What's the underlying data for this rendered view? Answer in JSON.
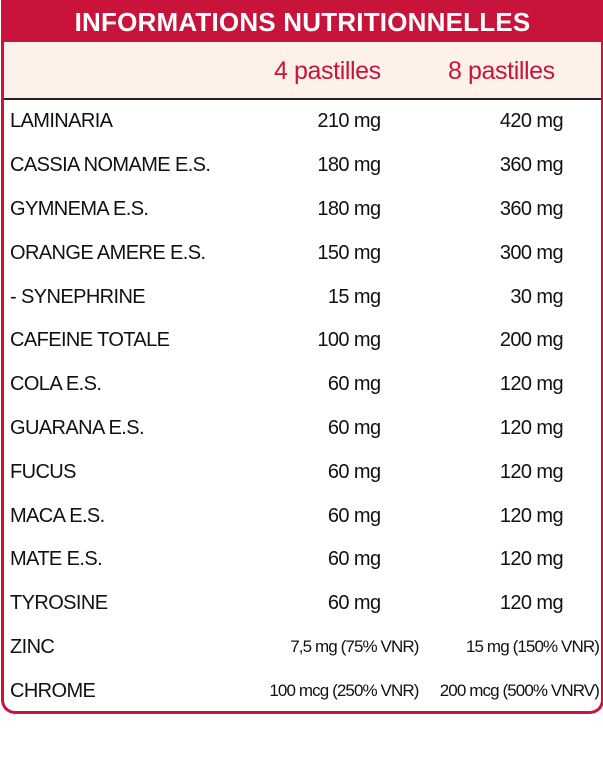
{
  "header": {
    "title": "INFORMATIONS NUTRITIONNELLES"
  },
  "table": {
    "columns": [
      "4 pastilles",
      "8 pastilles"
    ],
    "rows": [
      [
        "LAMINARIA",
        "210 mg",
        "420 mg"
      ],
      [
        "CASSIA NOMAME E.S.",
        "180 mg",
        "360 mg"
      ],
      [
        "GYMNEMA E.S.",
        "180 mg",
        "360 mg"
      ],
      [
        "ORANGE AMERE E.S.",
        "150 mg",
        "300 mg"
      ],
      [
        " - SYNEPHRINE",
        "15 mg",
        "30 mg"
      ],
      [
        "CAFEINE TOTALE",
        "100 mg",
        "200 mg"
      ],
      [
        "COLA E.S.",
        "60 mg",
        "120 mg"
      ],
      [
        "GUARANA E.S.",
        "60 mg",
        "120 mg"
      ],
      [
        "FUCUS",
        "60 mg",
        "120 mg"
      ],
      [
        "MACA E.S.",
        "60 mg",
        "120 mg"
      ],
      [
        "MATE E.S.",
        "60 mg",
        "120 mg"
      ],
      [
        "TYROSINE",
        "60 mg",
        "120 mg"
      ],
      [
        "ZINC",
        "7,5 mg (75% VNR)",
        "15 mg (150% VNR)"
      ],
      [
        "CHROME",
        "100 mcg (250% VNR)",
        "200 mcg (500% VNRV)"
      ]
    ]
  }
}
